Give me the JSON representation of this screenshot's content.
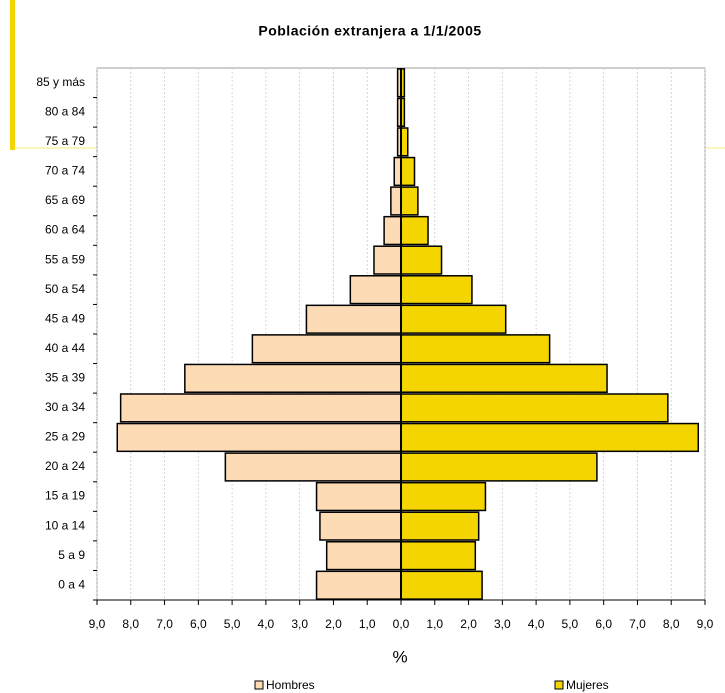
{
  "chart_data": {
    "type": "pyramid",
    "title": "Población extranjera a 1/1/2005",
    "x_label": "%",
    "categories": [
      "0 a 4",
      "5 a 9",
      "10 a 14",
      "15 a 19",
      "20 a 24",
      "25 a 29",
      "30 a 34",
      "35 a 39",
      "40 a 44",
      "45 a 49",
      "50 a 54",
      "55 a 59",
      "60 a 64",
      "65 a 69",
      "70 a 74",
      "75 a 79",
      "80 a 84",
      "85 y más"
    ],
    "series": [
      {
        "name": "Hombres",
        "color": "#fddcb5",
        "values": [
          -2.5,
          -2.2,
          -2.4,
          -2.5,
          -5.2,
          -8.4,
          -8.3,
          -6.4,
          -4.4,
          -2.8,
          -1.5,
          -0.8,
          -0.5,
          -0.3,
          -0.2,
          -0.1,
          -0.1,
          -0.1
        ]
      },
      {
        "name": "Mujeres",
        "color": "#f5d500",
        "values": [
          2.4,
          2.2,
          2.3,
          2.5,
          5.8,
          8.8,
          7.9,
          6.1,
          4.4,
          3.1,
          2.1,
          1.2,
          0.8,
          0.5,
          0.4,
          0.2,
          0.1,
          0.1
        ]
      }
    ],
    "xlim": [
      -9,
      9
    ],
    "xticks": [
      {
        "value": -9,
        "label": "9,0"
      },
      {
        "value": -8,
        "label": "8,0"
      },
      {
        "value": -7,
        "label": "7,0"
      },
      {
        "value": -6,
        "label": "6,0"
      },
      {
        "value": -5,
        "label": "5,0"
      },
      {
        "value": -4,
        "label": "4,0"
      },
      {
        "value": -3,
        "label": "3,0"
      },
      {
        "value": -2,
        "label": "2,0"
      },
      {
        "value": -1,
        "label": "1,0"
      },
      {
        "value": 0,
        "label": "0,0"
      },
      {
        "value": 1,
        "label": "1,0"
      },
      {
        "value": 2,
        "label": "2,0"
      },
      {
        "value": 3,
        "label": "3,0"
      },
      {
        "value": 4,
        "label": "4,0"
      },
      {
        "value": 5,
        "label": "5,0"
      },
      {
        "value": 6,
        "label": "6,0"
      },
      {
        "value": 7,
        "label": "7,0"
      },
      {
        "value": 8,
        "label": "8,0"
      },
      {
        "value": 9,
        "label": "9,0"
      }
    ],
    "grid": true
  }
}
